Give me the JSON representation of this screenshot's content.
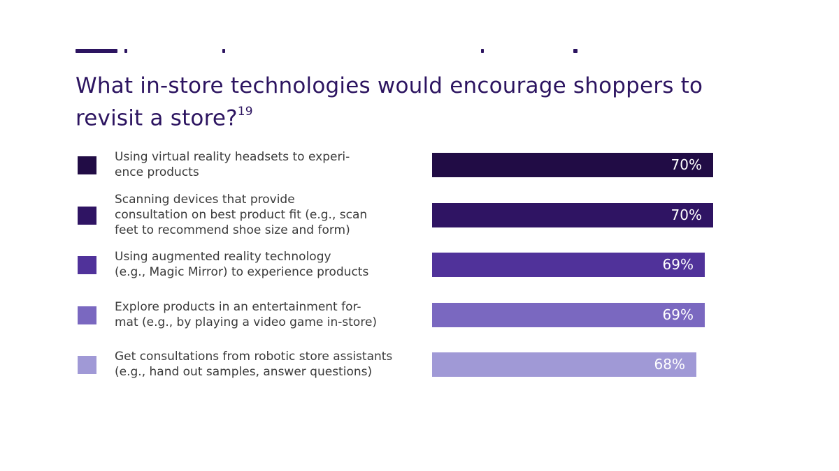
{
  "chart_data": {
    "type": "bar",
    "orientation": "horizontal",
    "title": "What in-store technologies would encourage shoppers to revisit a store?",
    "title_footnote": "19",
    "categories": [
      "Using virtual reality headsets to experi-\nence products",
      "Scanning devices that provide\nconsultation on best product fit (e.g., scan\nfeet to recommend shoe size and form)",
      "Using augmented reality technology\n(e.g., Magic Mirror) to experience products",
      "Explore products in an entertainment for-\nmat (e.g., by playing a video game in-store)",
      "Get consultations from robotic store assistants\n(e.g., hand out samples, answer questions)"
    ],
    "values": [
      70,
      70,
      69,
      69,
      68
    ],
    "value_labels": [
      "70%",
      "70%",
      "69%",
      "69%",
      "68%"
    ],
    "colors": [
      "#210c45",
      "#2f1463",
      "#50329a",
      "#7a68c0",
      "#a099d6"
    ],
    "unit": "%",
    "xlim": [
      0,
      70
    ],
    "grid": false,
    "legend": "left"
  }
}
